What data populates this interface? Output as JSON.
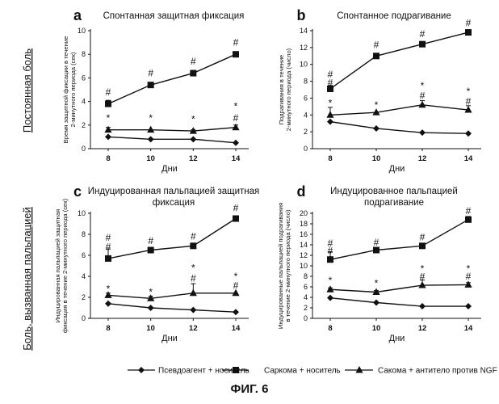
{
  "figure": {
    "caption": "ФИГ. 6",
    "row_labels": [
      "Постоянная боль",
      "Боль, вызванная пальпацией"
    ]
  },
  "legend": {
    "items": [
      {
        "label": "Псевдоагент + носитель",
        "marker": "diamond"
      },
      {
        "label": "Саркома + носитель",
        "marker": "square"
      },
      {
        "label": "Сакома + антитело против NGF",
        "marker": "triangle"
      }
    ]
  },
  "chart_data": [
    {
      "type": "line",
      "panel": "a",
      "title": [
        "Спонтанная защитная фиксация"
      ],
      "xlabel": "Дни",
      "ylabel": [
        "Время защитной фиксации в течение",
        "2-минутного периода (сек)"
      ],
      "x": [
        8,
        10,
        12,
        14
      ],
      "ylim": [
        0,
        10
      ],
      "yticks": [
        0,
        2,
        4,
        6,
        8,
        10
      ],
      "series": [
        {
          "name": "Псевдоагент + носитель",
          "marker": "diamond",
          "values": [
            1.0,
            0.8,
            0.8,
            0.5
          ],
          "err": [
            0,
            0,
            0,
            0
          ]
        },
        {
          "name": "Саркома + носитель",
          "marker": "square",
          "values": [
            3.8,
            5.4,
            6.4,
            8.0
          ],
          "err": [
            0.3,
            0,
            0.2,
            0.2
          ]
        },
        {
          "name": "Сакома + антитело против NGF",
          "marker": "triangle",
          "values": [
            1.6,
            1.6,
            1.5,
            1.8
          ],
          "err": [
            0.2,
            0,
            0.1,
            0.2
          ]
        }
      ],
      "annotations": [
        {
          "x": 8,
          "y": 4.8,
          "text": "#"
        },
        {
          "x": 10,
          "y": 6.4,
          "text": "#"
        },
        {
          "x": 12,
          "y": 7.4,
          "text": "#"
        },
        {
          "x": 14,
          "y": 9.0,
          "text": "#"
        },
        {
          "x": 8,
          "y": 2.6,
          "text": "*"
        },
        {
          "x": 10,
          "y": 2.6,
          "text": "*"
        },
        {
          "x": 12,
          "y": 2.5,
          "text": "*"
        },
        {
          "x": 14,
          "y": 3.6,
          "text": "*"
        },
        {
          "x": 14,
          "y": 2.6,
          "text": "#"
        }
      ]
    },
    {
      "type": "line",
      "panel": "b",
      "title": [
        "Спонтанное подрагивание"
      ],
      "xlabel": "Дни",
      "ylabel": [
        "Подрагивания в течение",
        "2-минутного периода (число)"
      ],
      "x": [
        8,
        10,
        12,
        14
      ],
      "ylim": [
        0,
        14
      ],
      "yticks": [
        0,
        2,
        4,
        6,
        8,
        10,
        12,
        14
      ],
      "series": [
        {
          "name": "Псевдоагент + носитель",
          "marker": "diamond",
          "values": [
            3.2,
            2.4,
            1.9,
            1.8
          ],
          "err": [
            0,
            0,
            0,
            0
          ]
        },
        {
          "name": "Саркома + носитель",
          "marker": "square",
          "values": [
            7.1,
            11.0,
            12.4,
            13.8
          ],
          "err": [
            0.4,
            0.3,
            0.2,
            0.3
          ]
        },
        {
          "name": "Сакома + антитело против NGF",
          "marker": "triangle",
          "values": [
            4.0,
            4.3,
            5.2,
            4.6
          ],
          "err": [
            0.9,
            0,
            0.5,
            0.5
          ]
        }
      ],
      "annotations": [
        {
          "x": 8,
          "y": 8.8,
          "text": "#"
        },
        {
          "x": 8,
          "y": 7.8,
          "text": "#"
        },
        {
          "x": 10,
          "y": 12.3,
          "text": "#"
        },
        {
          "x": 12,
          "y": 13.6,
          "text": "#"
        },
        {
          "x": 14,
          "y": 14.9,
          "text": "#"
        },
        {
          "x": 8,
          "y": 5.4,
          "text": "*"
        },
        {
          "x": 10,
          "y": 5.2,
          "text": "*"
        },
        {
          "x": 12,
          "y": 7.5,
          "text": "*"
        },
        {
          "x": 12,
          "y": 6.3,
          "text": "#"
        },
        {
          "x": 14,
          "y": 6.8,
          "text": "*"
        },
        {
          "x": 14,
          "y": 5.6,
          "text": "#"
        }
      ]
    },
    {
      "type": "line",
      "panel": "c",
      "title": [
        "Индуцированная пальпацией защитная",
        "фиксация"
      ],
      "xlabel": "Дни",
      "ylabel": [
        "Индуцированная пальпацией защитная",
        "фиксация в течение 2-минутного периода (сек)"
      ],
      "x": [
        8,
        10,
        12,
        14
      ],
      "ylim": [
        0,
        10
      ],
      "yticks": [
        0,
        2,
        4,
        6,
        8,
        10
      ],
      "series": [
        {
          "name": "Псевдоагент + носитель",
          "marker": "diamond",
          "values": [
            1.4,
            1.0,
            0.8,
            0.6
          ],
          "err": [
            0,
            0,
            0,
            0
          ]
        },
        {
          "name": "Саркома + носитель",
          "marker": "square",
          "values": [
            5.7,
            6.5,
            6.9,
            9.5
          ],
          "err": [
            0.9,
            0,
            0.1,
            0.1
          ]
        },
        {
          "name": "Сакома + антитело против NGF",
          "marker": "triangle",
          "values": [
            2.2,
            1.9,
            2.4,
            2.4
          ],
          "err": [
            0.2,
            0.2,
            0.9,
            0
          ]
        }
      ],
      "annotations": [
        {
          "x": 8,
          "y": 7.7,
          "text": "#"
        },
        {
          "x": 8,
          "y": 6.8,
          "text": "#"
        },
        {
          "x": 10,
          "y": 7.4,
          "text": "#"
        },
        {
          "x": 12,
          "y": 7.8,
          "text": "#"
        },
        {
          "x": 14,
          "y": 10.5,
          "text": "#"
        },
        {
          "x": 8,
          "y": 2.8,
          "text": "*"
        },
        {
          "x": 10,
          "y": 2.5,
          "text": "*"
        },
        {
          "x": 12,
          "y": 4.8,
          "text": "*"
        },
        {
          "x": 12,
          "y": 3.8,
          "text": "#"
        },
        {
          "x": 14,
          "y": 4.0,
          "text": "*"
        },
        {
          "x": 14,
          "y": 3.1,
          "text": "#"
        }
      ]
    },
    {
      "type": "line",
      "panel": "d",
      "title": [
        "Индуцированное пальпацией",
        "подрагивание"
      ],
      "xlabel": "Дни",
      "ylabel": [
        "Индуцированные пальпацией подрагивания",
        "в течение 2-минутного периода (число)"
      ],
      "x": [
        8,
        10,
        12,
        14
      ],
      "ylim": [
        0,
        20
      ],
      "yticks": [
        0,
        2,
        4,
        6,
        8,
        10,
        12,
        14,
        16,
        18,
        20
      ],
      "series": [
        {
          "name": "Псевдоагент + носитель",
          "marker": "diamond",
          "values": [
            3.9,
            3.0,
            2.3,
            2.3
          ],
          "err": [
            0,
            0,
            0,
            0
          ]
        },
        {
          "name": "Саркома + носитель",
          "marker": "square",
          "values": [
            11.2,
            13.0,
            13.8,
            18.8
          ],
          "err": [
            1.4,
            0.3,
            0.3,
            0.6
          ]
        },
        {
          "name": "Сакома + антитело против NGF",
          "marker": "triangle",
          "values": [
            5.5,
            5.0,
            6.3,
            6.4
          ],
          "err": [
            0.3,
            0.3,
            1.0,
            0.4
          ]
        }
      ],
      "annotations": [
        {
          "x": 8,
          "y": 14.3,
          "text": "#"
        },
        {
          "x": 8,
          "y": 12.9,
          "text": "#"
        },
        {
          "x": 10,
          "y": 14.5,
          "text": "#"
        },
        {
          "x": 12,
          "y": 15.5,
          "text": "#"
        },
        {
          "x": 14,
          "y": 20.5,
          "text": "#"
        },
        {
          "x": 8,
          "y": 7.2,
          "text": "*"
        },
        {
          "x": 10,
          "y": 6.7,
          "text": "*"
        },
        {
          "x": 12,
          "y": 9.5,
          "text": "*"
        },
        {
          "x": 12,
          "y": 7.9,
          "text": "#"
        },
        {
          "x": 14,
          "y": 9.5,
          "text": "*"
        },
        {
          "x": 14,
          "y": 8.0,
          "text": "#"
        }
      ]
    }
  ]
}
